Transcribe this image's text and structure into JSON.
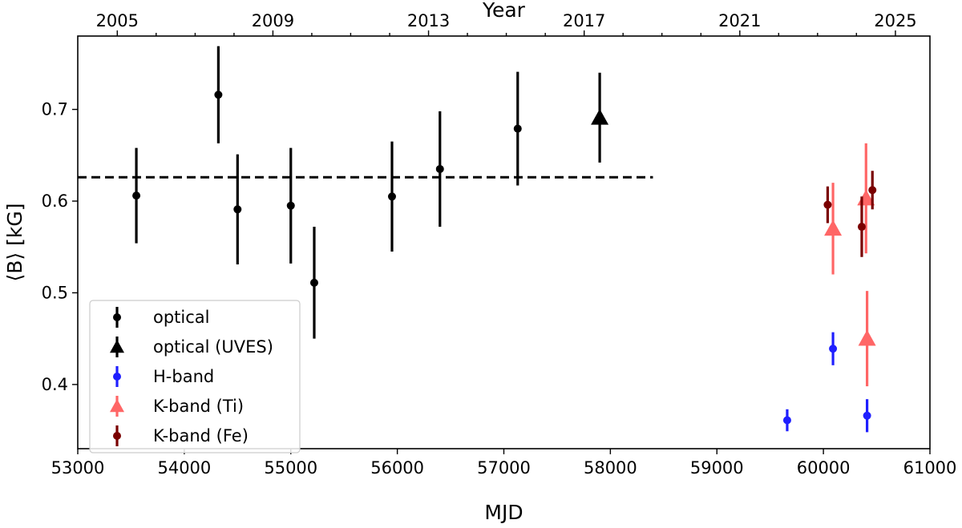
{
  "chart_data": {
    "type": "scatter",
    "xlabel": "MJD",
    "ylabel": "⟨B⟩ [kG]",
    "top_xlabel": "Year",
    "xlim": [
      53000,
      61000
    ],
    "ylim": [
      0.33,
      0.78
    ],
    "x_ticks": [
      53000,
      54000,
      55000,
      56000,
      57000,
      58000,
      59000,
      60000,
      61000
    ],
    "x_tick_labels": [
      "53000",
      "54000",
      "55000",
      "56000",
      "57000",
      "58000",
      "59000",
      "60000",
      "61000"
    ],
    "y_ticks": [
      0.4,
      0.5,
      0.6,
      0.7
    ],
    "y_tick_labels": [
      "0.4",
      "0.5",
      "0.6",
      "0.7"
    ],
    "top_x_ticks": [
      53371,
      54832,
      56293,
      57754,
      59215,
      60676
    ],
    "top_x_tick_labels": [
      "2005",
      "2009",
      "2013",
      "2017",
      "2021",
      "2025"
    ],
    "top_x_minor_ticks": [
      53736,
      54102,
      54467,
      55197,
      55562,
      55928,
      56658,
      57023,
      57389,
      58119,
      58484,
      58850,
      59580,
      59945,
      60310
    ],
    "grid": false,
    "legend_position": "lower-left",
    "reference_line": {
      "y": 0.626,
      "x_range": [
        53000,
        58400
      ],
      "style": "dashed",
      "color": "#000000"
    },
    "series": [
      {
        "name": "optical",
        "marker": "circle",
        "color": "#000000",
        "points": [
          {
            "x": 53550,
            "y": 0.606,
            "err": 0.052
          },
          {
            "x": 54320,
            "y": 0.716,
            "err": 0.053
          },
          {
            "x": 54500,
            "y": 0.591,
            "err": 0.06
          },
          {
            "x": 55000,
            "y": 0.595,
            "err": 0.063
          },
          {
            "x": 55220,
            "y": 0.511,
            "err": 0.061
          },
          {
            "x": 55950,
            "y": 0.605,
            "err": 0.06
          },
          {
            "x": 56400,
            "y": 0.635,
            "err": 0.063
          },
          {
            "x": 57130,
            "y": 0.679,
            "err": 0.062
          }
        ]
      },
      {
        "name": "optical (UVES)",
        "marker": "triangle",
        "color": "#000000",
        "points": [
          {
            "x": 57900,
            "y": 0.691,
            "err": 0.049
          }
        ]
      },
      {
        "name": "H-band",
        "marker": "circle",
        "color": "#1f1fff",
        "points": [
          {
            "x": 59660,
            "y": 0.361,
            "err": 0.012
          },
          {
            "x": 60090,
            "y": 0.439,
            "err": 0.018
          },
          {
            "x": 60410,
            "y": 0.366,
            "err": 0.018
          }
        ]
      },
      {
        "name": "K-band (Ti)",
        "marker": "triangle",
        "color": "#ff4040",
        "alpha": 0.8,
        "points": [
          {
            "x": 60090,
            "y": 0.57,
            "err": 0.05
          },
          {
            "x": 60400,
            "y": 0.603,
            "err": 0.06
          },
          {
            "x": 60410,
            "y": 0.45,
            "err": 0.052
          }
        ]
      },
      {
        "name": "K-band (Fe)",
        "marker": "circle",
        "color": "#7a0000",
        "points": [
          {
            "x": 60040,
            "y": 0.596,
            "err": 0.02
          },
          {
            "x": 60360,
            "y": 0.572,
            "err": 0.033
          },
          {
            "x": 60460,
            "y": 0.612,
            "err": 0.021
          }
        ]
      }
    ]
  }
}
